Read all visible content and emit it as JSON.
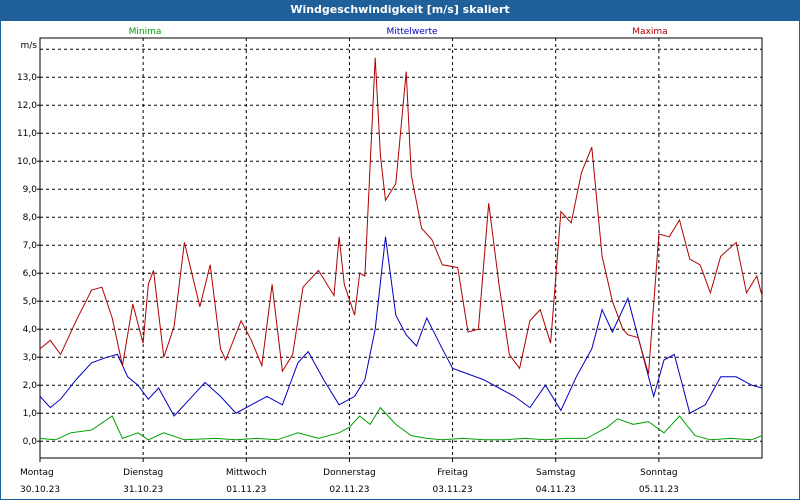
{
  "window": {
    "title": "Windgeschwindigkeit [m/s] skaliert"
  },
  "chart_data": {
    "type": "line",
    "title": "Windgeschwindigkeit [m/s] skaliert",
    "ylabel": "m/s",
    "ylim": [
      -0.6,
      14.4
    ],
    "yticks": [
      "0,0",
      "1,0",
      "2,0",
      "3,0",
      "4,0",
      "5,0",
      "6,0",
      "7,0",
      "8,0",
      "9,0",
      "10,0",
      "11,0",
      "12,0",
      "13,0"
    ],
    "ytick_values": [
      0,
      1,
      2,
      3,
      4,
      5,
      6,
      7,
      8,
      9,
      10,
      11,
      12,
      13
    ],
    "x_start": "30.10.23",
    "days": [
      {
        "weekday": "Montag",
        "date": "30.10.23"
      },
      {
        "weekday": "Dienstag",
        "date": "31.10.23"
      },
      {
        "weekday": "Mittwoch",
        "date": "01.11.23"
      },
      {
        "weekday": "Donnerstag",
        "date": "02.11.23"
      },
      {
        "weekday": "Freitag",
        "date": "03.11.23"
      },
      {
        "weekday": "Samstag",
        "date": "04.11.23"
      },
      {
        "weekday": "Sonntag",
        "date": "05.11.23"
      }
    ],
    "grid": true,
    "legend_position": "top",
    "series": [
      {
        "name": "Minima",
        "color": "#00a000",
        "x": [
          0,
          0.15,
          0.3,
          0.5,
          0.7,
          0.8,
          0.95,
          1.05,
          1.2,
          1.4,
          1.7,
          1.9,
          2.1,
          2.3,
          2.5,
          2.7,
          2.9,
          3.0,
          3.1,
          3.2,
          3.3,
          3.45,
          3.6,
          3.75,
          3.9,
          4.1,
          4.3,
          4.5,
          4.7,
          4.9,
          5.1,
          5.3,
          5.5,
          5.6,
          5.75,
          5.9,
          6.05,
          6.2,
          6.35,
          6.5,
          6.7,
          6.9,
          7.0
        ],
        "values": [
          0.1,
          0.05,
          0.3,
          0.4,
          0.9,
          0.1,
          0.3,
          0.05,
          0.3,
          0.05,
          0.1,
          0.05,
          0.1,
          0.05,
          0.3,
          0.1,
          0.3,
          0.5,
          0.9,
          0.6,
          1.2,
          0.6,
          0.2,
          0.1,
          0.05,
          0.1,
          0.05,
          0.05,
          0.1,
          0.05,
          0.1,
          0.1,
          0.5,
          0.8,
          0.6,
          0.7,
          0.3,
          0.9,
          0.2,
          0.05,
          0.1,
          0.05,
          0.2
        ]
      },
      {
        "name": "Mittelwerte",
        "color": "#0000c0",
        "x": [
          0,
          0.1,
          0.2,
          0.35,
          0.5,
          0.65,
          0.75,
          0.85,
          0.95,
          1.05,
          1.15,
          1.3,
          1.45,
          1.6,
          1.75,
          1.9,
          2.05,
          2.2,
          2.35,
          2.5,
          2.6,
          2.75,
          2.9,
          3.05,
          3.15,
          3.25,
          3.35,
          3.45,
          3.55,
          3.65,
          3.75,
          3.9,
          4.0,
          4.15,
          4.3,
          4.45,
          4.6,
          4.75,
          4.9,
          5.05,
          5.2,
          5.35,
          5.45,
          5.55,
          5.7,
          5.85,
          5.95,
          6.05,
          6.15,
          6.3,
          6.45,
          6.6,
          6.75,
          6.9,
          7.0
        ],
        "values": [
          1.6,
          1.2,
          1.5,
          2.2,
          2.8,
          3.0,
          3.1,
          2.3,
          2.0,
          1.5,
          1.9,
          0.9,
          1.5,
          2.1,
          1.6,
          1.0,
          1.3,
          1.6,
          1.3,
          2.8,
          3.2,
          2.2,
          1.3,
          1.6,
          2.2,
          4.0,
          7.3,
          4.5,
          3.8,
          3.4,
          4.4,
          3.3,
          2.6,
          2.4,
          2.2,
          1.9,
          1.6,
          1.2,
          2.0,
          1.1,
          2.3,
          3.3,
          4.7,
          3.9,
          5.1,
          3.0,
          1.6,
          2.9,
          3.1,
          1.0,
          1.3,
          2.3,
          2.3,
          2.0,
          1.9
        ]
      },
      {
        "name": "Maxima",
        "color": "#b00000",
        "x": [
          0,
          0.1,
          0.2,
          0.35,
          0.5,
          0.6,
          0.7,
          0.8,
          0.9,
          1.0,
          1.05,
          1.1,
          1.2,
          1.3,
          1.4,
          1.55,
          1.65,
          1.75,
          1.8,
          1.95,
          2.05,
          2.15,
          2.25,
          2.35,
          2.45,
          2.55,
          2.7,
          2.85,
          2.9,
          2.95,
          3.05,
          3.1,
          3.15,
          3.25,
          3.3,
          3.35,
          3.45,
          3.55,
          3.6,
          3.7,
          3.8,
          3.9,
          4.05,
          4.15,
          4.25,
          4.35,
          4.45,
          4.55,
          4.65,
          4.75,
          4.85,
          4.95,
          5.05,
          5.15,
          5.25,
          5.35,
          5.45,
          5.55,
          5.65,
          5.7,
          5.8,
          5.9,
          6.0,
          6.1,
          6.2,
          6.3,
          6.4,
          6.5,
          6.6,
          6.75,
          6.85,
          6.95,
          7.0
        ],
        "values": [
          3.3,
          3.6,
          3.1,
          4.3,
          5.4,
          5.5,
          4.4,
          2.7,
          4.9,
          3.5,
          5.6,
          6.1,
          3.0,
          4.1,
          7.1,
          4.8,
          6.3,
          3.3,
          2.9,
          4.3,
          3.6,
          2.7,
          5.6,
          2.5,
          3.1,
          5.5,
          6.1,
          5.2,
          7.3,
          5.6,
          4.5,
          6.0,
          5.9,
          13.7,
          10.2,
          8.6,
          9.2,
          13.2,
          9.5,
          7.6,
          7.2,
          6.3,
          6.2,
          3.9,
          4.0,
          8.5,
          5.6,
          3.1,
          2.6,
          4.3,
          4.7,
          3.5,
          8.2,
          7.8,
          9.6,
          10.5,
          6.6,
          5.0,
          4.0,
          3.8,
          3.7,
          2.4,
          7.4,
          7.3,
          7.9,
          6.5,
          6.3,
          5.3,
          6.6,
          7.1,
          5.3,
          5.9,
          5.2
        ]
      }
    ]
  }
}
